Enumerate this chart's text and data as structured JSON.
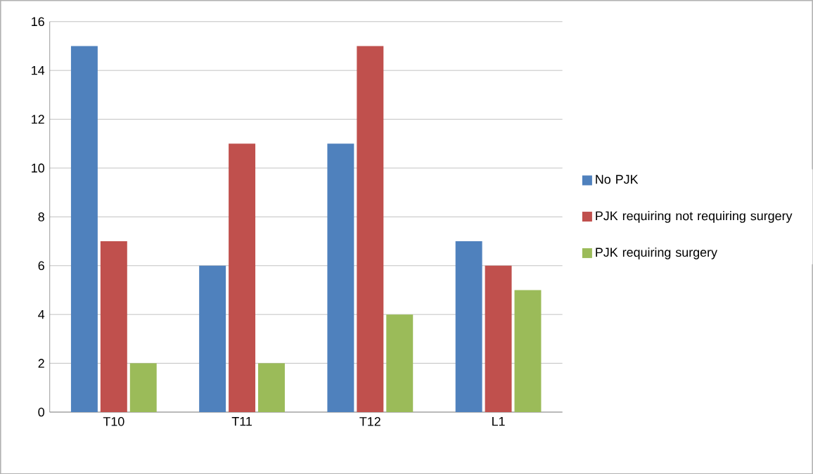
{
  "chart_data": {
    "type": "bar",
    "categories": [
      "T10",
      "T11",
      "T12",
      "L1"
    ],
    "series": [
      {
        "name": "No PJK",
        "color": "#4f81bd",
        "values": [
          15,
          6,
          11,
          7
        ]
      },
      {
        "name": "PJK requiring not requiring surgery",
        "color": "#c0504d",
        "values": [
          7,
          11,
          15,
          6
        ]
      },
      {
        "name": "PJK requiring surgery",
        "color": "#9bbb59",
        "values": [
          2,
          2,
          4,
          5
        ]
      }
    ],
    "ylim": [
      0,
      16
    ],
    "yticks": [
      0,
      2,
      4,
      6,
      8,
      10,
      12,
      14,
      16
    ],
    "grid": "y",
    "legend": "right"
  }
}
